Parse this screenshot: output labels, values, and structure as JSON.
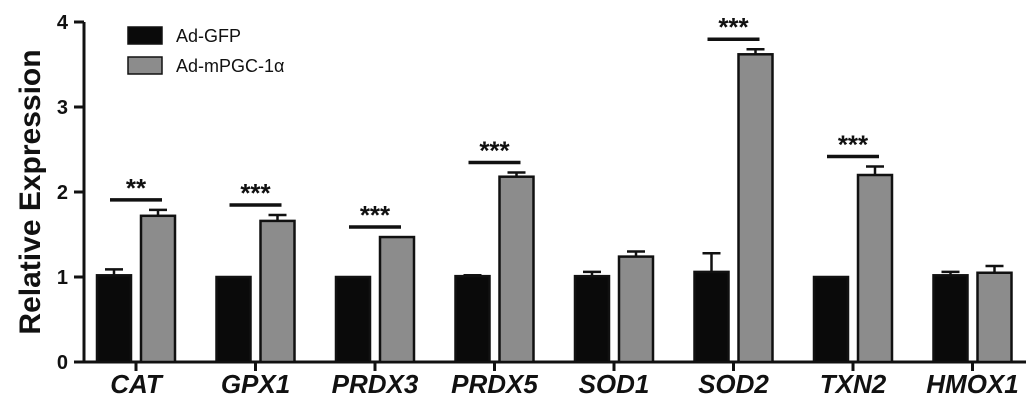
{
  "chart_data": {
    "type": "bar",
    "ylabel": "Relative Expression",
    "ylim": [
      0,
      4
    ],
    "yticks": [
      "0",
      "1",
      "2",
      "3",
      "4"
    ],
    "categories": [
      "CAT",
      "GPX1",
      "PRDX3",
      "PRDX5",
      "SOD1",
      "SOD2",
      "TXN2",
      "HMOX1"
    ],
    "series": [
      {
        "name": "Ad-GFP",
        "color": "#0a0a0a",
        "values": [
          1.02,
          1.0,
          1.0,
          1.01,
          1.01,
          1.06,
          1.0,
          1.02
        ],
        "errors": [
          0.07,
          0.0,
          0.0,
          0.01,
          0.05,
          0.22,
          0.0,
          0.04
        ]
      },
      {
        "name": "Ad-mPGC-1α",
        "color": "#8c8c8c",
        "values": [
          1.72,
          1.66,
          1.47,
          2.18,
          1.24,
          3.62,
          2.2,
          1.05
        ],
        "errors": [
          0.07,
          0.07,
          0.0,
          0.05,
          0.06,
          0.06,
          0.1,
          0.08
        ]
      }
    ],
    "significance": [
      {
        "category": "CAT",
        "label": "**"
      },
      {
        "category": "GPX1",
        "label": "***"
      },
      {
        "category": "PRDX3",
        "label": "***"
      },
      {
        "category": "PRDX5",
        "label": "***"
      },
      {
        "category": "SOD2",
        "label": "***"
      },
      {
        "category": "TXN2",
        "label": "***"
      }
    ],
    "legend_position": "top-left",
    "grid": false
  }
}
